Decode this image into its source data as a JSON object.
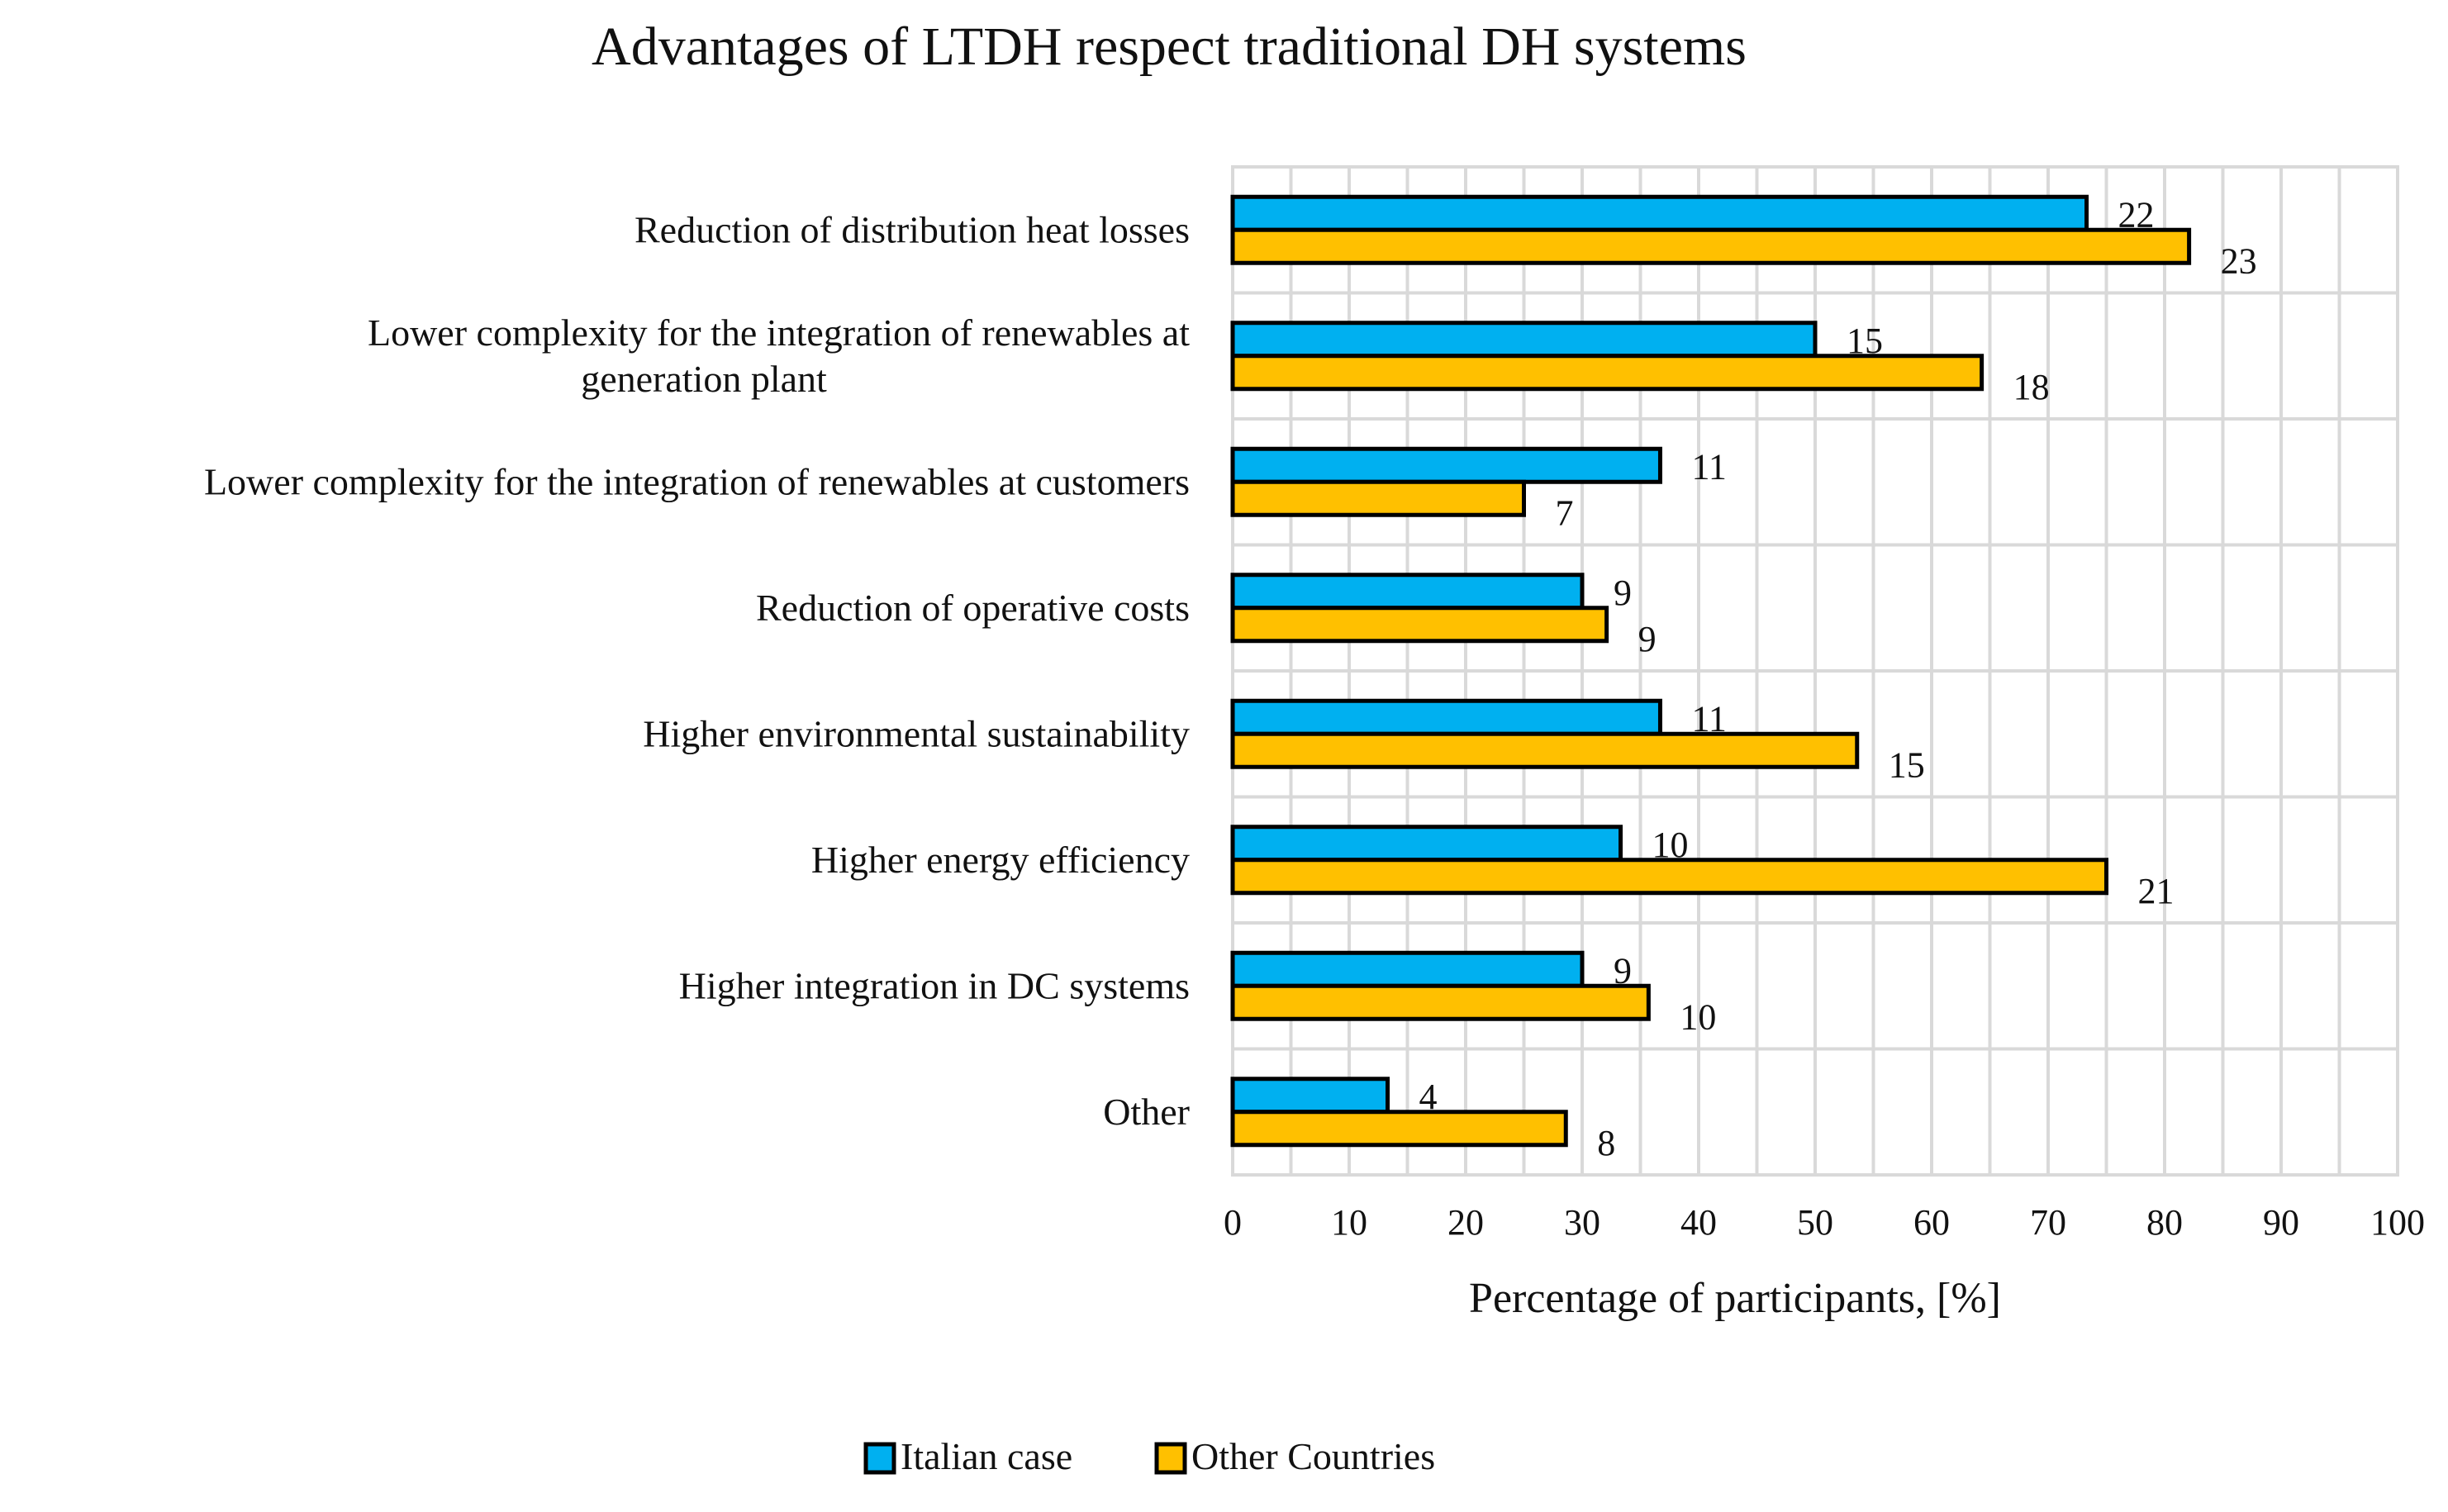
{
  "chart_data": {
    "type": "bar",
    "orientation": "horizontal",
    "title": "Advantages of LTDH respect traditional DH systems",
    "xlabel": "Percentage of participants, [%]",
    "ylabel": "",
    "xlim": [
      0,
      100
    ],
    "x_ticks": [
      0,
      10,
      20,
      30,
      40,
      50,
      60,
      70,
      80,
      90,
      100
    ],
    "grid": true,
    "legend_position": "bottom",
    "categories": [
      {
        "lines": [
          "Reduction of distribution heat losses"
        ]
      },
      {
        "lines": [
          "Lower complexity for the integration of renewables at",
          "generation plant"
        ]
      },
      {
        "lines": [
          "Lower complexity for the integration of renewables at customers"
        ]
      },
      {
        "lines": [
          "Reduction of operative costs"
        ]
      },
      {
        "lines": [
          "Higher environmental sustainability"
        ]
      },
      {
        "lines": [
          "Higher energy efficiency"
        ]
      },
      {
        "lines": [
          "Higher integration in DC systems"
        ]
      },
      {
        "lines": [
          "Other"
        ]
      }
    ],
    "series": [
      {
        "name": "Italian case",
        "color": "#00b0f0",
        "values": [
          73.3,
          50.0,
          36.7,
          30.0,
          36.7,
          33.3,
          30.0,
          13.3
        ],
        "labels": [
          "22",
          "15",
          "11",
          "9",
          "11",
          "10",
          "9",
          "4"
        ]
      },
      {
        "name": "Other Countries",
        "color": "#ffc000",
        "values": [
          82.1,
          64.3,
          25.0,
          32.1,
          53.6,
          75.0,
          35.7,
          28.6
        ],
        "labels": [
          "23",
          "18",
          "7",
          "9",
          "15",
          "21",
          "10",
          "8"
        ]
      }
    ]
  }
}
